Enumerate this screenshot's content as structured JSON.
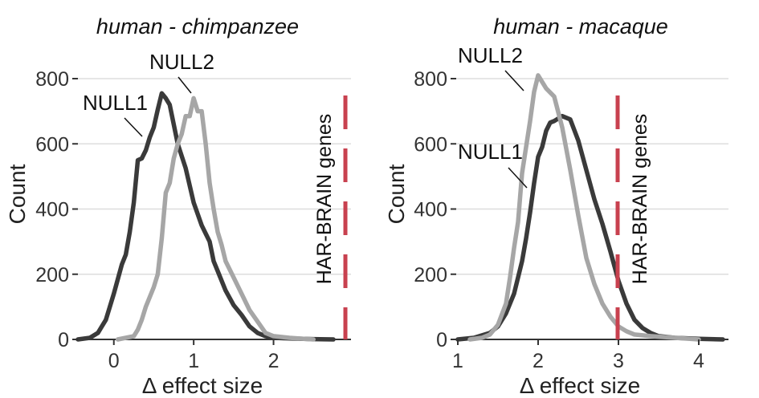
{
  "chart_data": [
    {
      "type": "line",
      "title": "human - chimpanzee",
      "xlabel": "Δ effect size",
      "ylabel": "Count",
      "xlim": [
        -0.45,
        2.95
      ],
      "ylim": [
        0,
        800
      ],
      "xticks": [
        "0",
        "1",
        "2"
      ],
      "yticks": [
        "0",
        "200",
        "400",
        "600",
        "800"
      ],
      "grid": true,
      "series": [
        {
          "name": "NULL1",
          "color": "#3a3a3a",
          "x": [
            -0.45,
            -0.3,
            -0.2,
            -0.1,
            0.0,
            0.1,
            0.15,
            0.2,
            0.25,
            0.3,
            0.35,
            0.4,
            0.45,
            0.5,
            0.55,
            0.6,
            0.65,
            0.7,
            0.75,
            0.8,
            0.9,
            1.0,
            1.1,
            1.2,
            1.25,
            1.3,
            1.4,
            1.5,
            1.6,
            1.7,
            1.8,
            1.9,
            2.0,
            2.2,
            2.5,
            2.75
          ],
          "y": [
            0,
            5,
            20,
            60,
            140,
            230,
            260,
            330,
            420,
            550,
            555,
            580,
            620,
            650,
            705,
            755,
            740,
            720,
            660,
            600,
            525,
            420,
            350,
            300,
            240,
            210,
            150,
            105,
            75,
            40,
            20,
            10,
            5,
            3,
            1,
            0
          ]
        },
        {
          "name": "NULL2",
          "color": "#a6a6a6",
          "x": [
            0.05,
            0.15,
            0.25,
            0.3,
            0.35,
            0.4,
            0.5,
            0.55,
            0.6,
            0.65,
            0.7,
            0.75,
            0.8,
            0.85,
            0.9,
            0.95,
            1.0,
            1.05,
            1.1,
            1.15,
            1.2,
            1.25,
            1.3,
            1.35,
            1.4,
            1.5,
            1.6,
            1.7,
            1.8,
            1.9,
            2.0,
            2.2,
            2.5
          ],
          "y": [
            0,
            5,
            10,
            30,
            60,
            100,
            160,
            200,
            310,
            450,
            480,
            555,
            600,
            630,
            685,
            685,
            740,
            700,
            700,
            600,
            480,
            400,
            330,
            290,
            240,
            190,
            140,
            90,
            55,
            20,
            10,
            5,
            0
          ]
        }
      ],
      "vline": {
        "x": 2.9,
        "label": "HAR-BRAIN genes",
        "color": "#c8414f",
        "style": "dashed"
      },
      "annotations": [
        "NULL1",
        "NULL2"
      ]
    },
    {
      "type": "line",
      "title": "human - macaque",
      "xlabel": "Δ effect size",
      "ylabel": "Count",
      "xlim": [
        0.98,
        4.35
      ],
      "ylim": [
        0,
        800
      ],
      "xticks": [
        "1",
        "2",
        "3",
        "4"
      ],
      "yticks": [
        "0",
        "200",
        "400",
        "600",
        "800"
      ],
      "grid": true,
      "series": [
        {
          "name": "NULL1",
          "color": "#3a3a3a",
          "x": [
            1.0,
            1.2,
            1.4,
            1.5,
            1.6,
            1.7,
            1.8,
            1.85,
            1.9,
            1.95,
            2.0,
            2.05,
            2.1,
            2.15,
            2.2,
            2.3,
            2.4,
            2.5,
            2.6,
            2.7,
            2.8,
            2.9,
            3.0,
            3.1,
            3.2,
            3.3,
            3.4,
            3.5,
            3.7,
            4.0,
            4.3
          ],
          "y": [
            0,
            5,
            20,
            40,
            80,
            140,
            240,
            310,
            390,
            480,
            560,
            590,
            640,
            665,
            670,
            685,
            675,
            610,
            520,
            430,
            355,
            270,
            180,
            110,
            60,
            35,
            20,
            10,
            5,
            2,
            0
          ]
        },
        {
          "name": "NULL2",
          "color": "#a6a6a6",
          "x": [
            1.15,
            1.3,
            1.4,
            1.5,
            1.6,
            1.65,
            1.7,
            1.75,
            1.8,
            1.85,
            1.9,
            1.95,
            2.0,
            2.05,
            2.1,
            2.2,
            2.3,
            2.4,
            2.5,
            2.6,
            2.7,
            2.8,
            2.9,
            3.0,
            3.1,
            3.2,
            3.4,
            3.7,
            4.0
          ],
          "y": [
            0,
            5,
            15,
            45,
            110,
            190,
            280,
            360,
            510,
            590,
            670,
            760,
            810,
            790,
            770,
            745,
            650,
            520,
            380,
            250,
            170,
            110,
            70,
            40,
            25,
            15,
            10,
            5,
            0
          ]
        }
      ],
      "vline": {
        "x": 2.99,
        "label": "HAR-BRAIN genes",
        "color": "#c8414f",
        "style": "dashed"
      },
      "annotations": [
        "NULL2",
        "NULL1"
      ]
    }
  ]
}
